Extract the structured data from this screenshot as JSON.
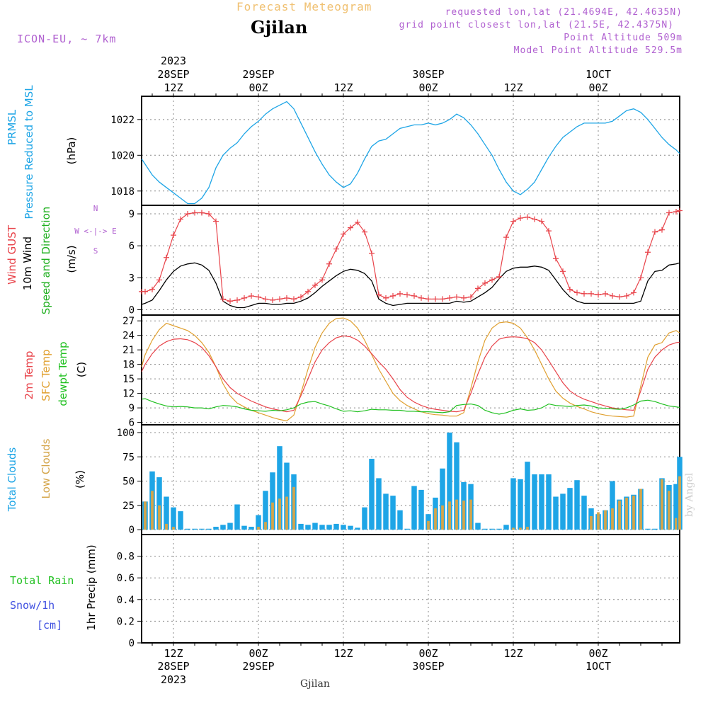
{
  "header": {
    "title": "Forecast Meteogram",
    "location": "Gjilan",
    "model": "ICON-EU, ~ 7km",
    "requested": "requested lon,lat (21.4694E, 42.4635N)",
    "gridpoint": "grid point closest lon,lat (21.5E, 42.4375N)",
    "point_altitude": "Point Altitude 509m",
    "model_altitude": "Model Point Altitude 529.5m",
    "footer_location": "Gjilan",
    "watermark": "by Angel"
  },
  "time_axis": {
    "top_year": "2023",
    "ticks": [
      {
        "t": 12,
        "time": "12Z",
        "date": "28SEP"
      },
      {
        "t": 24,
        "time": "00Z",
        "date": "29SEP"
      },
      {
        "t": 36,
        "time": "12Z",
        "date": ""
      },
      {
        "t": 48,
        "time": "00Z",
        "date": "30SEP"
      },
      {
        "t": 60,
        "time": "12Z",
        "date": ""
      },
      {
        "t": 72,
        "time": "00Z",
        "date": "1OCT"
      }
    ],
    "bottom_year": "2023",
    "t_start": 7.5,
    "t_end": 83.5
  },
  "panel_labels": {
    "pressure": [
      "PRMSL",
      "Pressure Reduced to MSL",
      "(hPa)"
    ],
    "wind": [
      "Wind GUST",
      "10m Wind",
      "Speed and Direction",
      "(m/s)"
    ],
    "compass": [
      "N",
      "W <-|-> E",
      "S"
    ],
    "temp": [
      "2m Temp",
      "SFC Temp",
      "dewpt Temp",
      "(C)"
    ],
    "clouds": [
      "Total Clouds",
      "Low Clouds",
      "(%)"
    ],
    "precip": [
      "Total  Rain",
      "Snow/1h",
      "[cm]",
      "1hr Precip (mm)"
    ]
  },
  "colors": {
    "pressure": "#1ea5e6",
    "gust": "#e8434a",
    "wind": "#000000",
    "wind_label": "#20b020",
    "sfc_temp": "#e0a030",
    "dewpoint": "#20c020",
    "total_clouds": "#1ea5e6",
    "low_clouds": "#d4a54a",
    "purple": "#b060d0",
    "header_orange": "#f0c070",
    "snow": "#4050e0"
  },
  "chart_data": [
    {
      "type": "line",
      "name": "pressure",
      "ylim": [
        1017.2,
        1023.3
      ],
      "yticks": [
        1018,
        1020,
        1022
      ],
      "x": [
        7.5,
        8,
        9,
        10,
        11,
        12,
        13,
        14,
        15,
        16,
        17,
        18,
        19,
        20,
        21,
        22,
        23,
        24,
        25,
        26,
        27,
        28,
        29,
        30,
        31,
        32,
        33,
        34,
        35,
        36,
        37,
        38,
        39,
        40,
        41,
        42,
        43,
        44,
        45,
        46,
        47,
        48,
        49,
        50,
        51,
        52,
        53,
        54,
        55,
        56,
        57,
        58,
        59,
        60,
        61,
        62,
        63,
        64,
        65,
        66,
        67,
        68,
        69,
        70,
        71,
        72,
        73,
        74,
        75,
        76,
        77,
        78,
        79,
        80,
        81,
        82,
        83,
        83.5
      ],
      "series": [
        {
          "name": "PRMSL",
          "values": [
            1019.8,
            1019.5,
            1018.9,
            1018.5,
            1018.2,
            1017.9,
            1017.6,
            1017.3,
            1017.3,
            1017.6,
            1018.2,
            1019.3,
            1020.0,
            1020.4,
            1020.7,
            1021.2,
            1021.6,
            1021.9,
            1022.3,
            1022.6,
            1022.8,
            1023.0,
            1022.6,
            1021.8,
            1021.0,
            1020.2,
            1019.5,
            1018.9,
            1018.5,
            1018.2,
            1018.4,
            1019.0,
            1019.8,
            1020.5,
            1020.8,
            1020.9,
            1021.2,
            1021.5,
            1021.6,
            1021.7,
            1021.7,
            1021.8,
            1021.7,
            1021.8,
            1022.0,
            1022.3,
            1022.1,
            1021.7,
            1021.2,
            1020.6,
            1020.0,
            1019.2,
            1018.5,
            1018.0,
            1017.8,
            1018.1,
            1018.5,
            1019.2,
            1019.9,
            1020.5,
            1021.0,
            1021.3,
            1021.6,
            1021.8,
            1021.8,
            1021.8,
            1021.8,
            1021.9,
            1022.2,
            1022.5,
            1022.6,
            1022.4,
            1022.0,
            1021.5,
            1021.0,
            1020.6,
            1020.3,
            1020.1
          ]
        }
      ]
    },
    {
      "type": "line",
      "name": "wind",
      "ylim": [
        -0.5,
        9.8
      ],
      "yticks": [
        0,
        3,
        6,
        9
      ],
      "x": [
        7.5,
        8,
        9,
        10,
        11,
        12,
        13,
        14,
        15,
        16,
        17,
        18,
        19,
        20,
        21,
        22,
        23,
        24,
        25,
        26,
        27,
        28,
        29,
        30,
        31,
        32,
        33,
        34,
        35,
        36,
        37,
        38,
        39,
        40,
        41,
        42,
        43,
        44,
        45,
        46,
        47,
        48,
        49,
        50,
        51,
        52,
        53,
        54,
        55,
        56,
        57,
        58,
        59,
        60,
        61,
        62,
        63,
        64,
        65,
        66,
        67,
        68,
        69,
        70,
        71,
        72,
        73,
        74,
        75,
        76,
        77,
        78,
        79,
        80,
        81,
        82,
        83,
        83.5
      ],
      "series": [
        {
          "name": "Wind GUST",
          "values": [
            1.7,
            1.7,
            1.9,
            2.8,
            4.9,
            7.0,
            8.5,
            9.0,
            9.1,
            9.1,
            9.0,
            8.3,
            1.0,
            0.8,
            0.9,
            1.1,
            1.3,
            1.2,
            1.0,
            0.9,
            1.0,
            1.1,
            1.0,
            1.2,
            1.7,
            2.3,
            2.8,
            4.3,
            5.7,
            7.1,
            7.7,
            8.2,
            7.3,
            5.3,
            1.4,
            1.1,
            1.3,
            1.5,
            1.4,
            1.3,
            1.1,
            1.0,
            1.0,
            1.0,
            1.1,
            1.2,
            1.1,
            1.2,
            2.0,
            2.5,
            2.8,
            3.1,
            6.8,
            8.3,
            8.6,
            8.7,
            8.5,
            8.3,
            7.4,
            4.8,
            3.6,
            1.9,
            1.6,
            1.5,
            1.5,
            1.4,
            1.5,
            1.3,
            1.2,
            1.3,
            1.6,
            3.0,
            5.4,
            7.3,
            7.5,
            9.1,
            9.2,
            9.3
          ]
        },
        {
          "name": "10m Wind",
          "values": [
            0.5,
            0.6,
            0.9,
            1.8,
            2.8,
            3.6,
            4.1,
            4.3,
            4.4,
            4.2,
            3.7,
            2.5,
            0.8,
            0.4,
            0.2,
            0.2,
            0.4,
            0.6,
            0.6,
            0.5,
            0.5,
            0.6,
            0.6,
            0.8,
            1.1,
            1.6,
            2.2,
            2.7,
            3.2,
            3.6,
            3.8,
            3.7,
            3.4,
            2.7,
            1.0,
            0.6,
            0.4,
            0.5,
            0.6,
            0.6,
            0.6,
            0.6,
            0.6,
            0.6,
            0.6,
            0.8,
            0.7,
            0.8,
            1.2,
            1.6,
            2.1,
            2.9,
            3.6,
            3.9,
            4.0,
            4.0,
            4.1,
            4.0,
            3.7,
            2.8,
            1.9,
            1.2,
            0.8,
            0.6,
            0.6,
            0.6,
            0.6,
            0.6,
            0.6,
            0.6,
            0.6,
            0.8,
            2.7,
            3.6,
            3.7,
            4.2,
            4.3,
            4.4
          ]
        }
      ]
    },
    {
      "type": "line",
      "name": "temperature",
      "ylim": [
        5.5,
        28.2
      ],
      "yticks": [
        6,
        9,
        12,
        15,
        18,
        21,
        24,
        27
      ],
      "x": [
        7.5,
        8,
        9,
        10,
        11,
        12,
        13,
        14,
        15,
        16,
        17,
        18,
        19,
        20,
        21,
        22,
        23,
        24,
        25,
        26,
        27,
        28,
        29,
        30,
        31,
        32,
        33,
        34,
        35,
        36,
        37,
        38,
        39,
        40,
        41,
        42,
        43,
        44,
        45,
        46,
        47,
        48,
        49,
        50,
        51,
        52,
        53,
        54,
        55,
        56,
        57,
        58,
        59,
        60,
        61,
        62,
        63,
        64,
        65,
        66,
        67,
        68,
        69,
        70,
        71,
        72,
        73,
        74,
        75,
        76,
        77,
        78,
        79,
        80,
        81,
        82,
        83,
        83.5
      ],
      "series": [
        {
          "name": "2m Temp",
          "values": [
            16.5,
            18.0,
            20.2,
            21.8,
            22.7,
            23.2,
            23.3,
            23.1,
            22.5,
            21.5,
            19.8,
            17.5,
            15.0,
            13.2,
            12.0,
            11.2,
            10.4,
            9.8,
            9.2,
            8.8,
            8.5,
            8.2,
            8.5,
            11.5,
            15.0,
            18.5,
            21.0,
            22.5,
            23.5,
            23.9,
            23.7,
            23.0,
            21.8,
            20.2,
            18.5,
            17.0,
            15.0,
            12.8,
            11.2,
            10.2,
            9.5,
            9.0,
            8.7,
            8.5,
            8.3,
            8.2,
            8.5,
            12.0,
            16.0,
            19.5,
            21.8,
            23.2,
            23.6,
            23.7,
            23.6,
            23.3,
            22.5,
            21.0,
            18.8,
            16.5,
            14.2,
            12.5,
            11.5,
            10.8,
            10.3,
            9.8,
            9.4,
            9.0,
            8.8,
            8.6,
            8.5,
            12.5,
            17.0,
            19.5,
            21.0,
            22.0,
            22.5,
            22.6
          ]
        },
        {
          "name": "SFC Temp",
          "values": [
            17.5,
            20.0,
            23.0,
            25.2,
            26.5,
            26.0,
            25.5,
            25.0,
            24.0,
            22.5,
            20.5,
            17.5,
            14.0,
            11.5,
            10.0,
            9.2,
            8.5,
            8.0,
            7.5,
            7.0,
            6.6,
            6.3,
            7.5,
            12.0,
            17.0,
            21.5,
            24.5,
            26.5,
            27.5,
            27.6,
            27.0,
            25.5,
            23.0,
            20.0,
            17.0,
            14.5,
            12.0,
            10.5,
            9.5,
            8.8,
            8.2,
            7.8,
            7.6,
            7.5,
            7.3,
            7.3,
            8.0,
            13.0,
            18.5,
            23.0,
            25.5,
            26.6,
            26.8,
            26.5,
            25.5,
            23.5,
            21.0,
            18.0,
            15.0,
            12.5,
            11.0,
            10.0,
            9.3,
            8.8,
            8.2,
            7.8,
            7.5,
            7.3,
            7.2,
            7.1,
            7.3,
            13.5,
            19.5,
            22.0,
            22.5,
            24.5,
            25.0,
            24.5
          ]
        },
        {
          "name": "dewpt Temp",
          "values": [
            10.8,
            10.9,
            10.3,
            9.8,
            9.4,
            9.2,
            9.3,
            9.2,
            9.0,
            9.0,
            8.8,
            9.2,
            9.5,
            9.4,
            9.2,
            8.8,
            8.5,
            8.4,
            8.3,
            8.5,
            8.4,
            8.6,
            9.0,
            9.8,
            10.2,
            10.3,
            9.8,
            9.4,
            8.8,
            8.3,
            8.4,
            8.2,
            8.4,
            8.7,
            8.6,
            8.6,
            8.5,
            8.5,
            8.3,
            8.3,
            8.2,
            8.2,
            8.1,
            8.0,
            8.2,
            9.5,
            9.7,
            9.8,
            9.5,
            8.5,
            8.0,
            7.7,
            8.0,
            8.5,
            8.8,
            8.5,
            8.6,
            9.0,
            9.8,
            9.5,
            9.4,
            9.3,
            9.5,
            9.6,
            9.4,
            9.0,
            8.9,
            8.8,
            8.7,
            9.0,
            9.6,
            10.4,
            10.6,
            10.3,
            9.8,
            9.4,
            9.2,
            9.1
          ]
        }
      ]
    },
    {
      "type": "bar",
      "name": "clouds",
      "ylim": [
        -5,
        108
      ],
      "yticks": [
        0,
        25,
        50,
        75,
        100
      ],
      "x": [
        8,
        9,
        10,
        11,
        12,
        13,
        14,
        15,
        16,
        17,
        18,
        19,
        20,
        21,
        22,
        23,
        24,
        25,
        26,
        27,
        28,
        29,
        30,
        31,
        32,
        33,
        34,
        35,
        36,
        37,
        38,
        39,
        40,
        41,
        42,
        43,
        44,
        45,
        46,
        47,
        48,
        49,
        50,
        51,
        52,
        53,
        54,
        55,
        56,
        57,
        58,
        59,
        60,
        61,
        62,
        63,
        64,
        65,
        66,
        67,
        68,
        69,
        70,
        71,
        72,
        73,
        74,
        75,
        76,
        77,
        78,
        79,
        80,
        81,
        82,
        83,
        83.5
      ],
      "series": [
        {
          "name": "Total Clouds",
          "values": [
            29,
            60,
            54,
            34,
            23,
            19,
            1,
            1,
            1,
            1,
            3,
            5,
            7,
            26,
            4,
            3,
            15,
            40,
            59,
            86,
            69,
            57,
            6,
            5,
            7,
            5,
            5,
            6,
            5,
            4,
            2,
            23,
            73,
            53,
            37,
            35,
            20,
            1,
            45,
            41,
            16,
            33,
            63,
            100,
            90,
            49,
            47,
            7,
            1,
            1,
            1,
            5,
            53,
            52,
            70,
            57,
            57,
            57,
            34,
            37,
            43,
            51,
            35,
            22,
            16,
            20,
            50,
            31,
            34,
            36,
            42,
            1,
            1,
            53,
            46,
            47,
            75
          ]
        },
        {
          "name": "Low Clouds",
          "values": [
            29,
            40,
            25,
            6,
            3,
            0,
            0,
            0,
            0,
            0,
            0,
            0,
            0,
            0,
            0,
            0,
            3,
            8,
            28,
            32,
            34,
            44,
            0,
            0,
            0,
            0,
            0,
            0,
            0,
            0,
            0,
            0,
            0,
            0,
            0,
            0,
            0,
            0,
            0,
            0,
            9,
            22,
            25,
            29,
            31,
            30,
            31,
            0,
            0,
            0,
            0,
            0,
            2,
            2,
            3,
            0,
            0,
            0,
            0,
            0,
            0,
            0,
            0,
            14,
            18,
            20,
            22,
            30,
            33,
            35,
            42,
            0,
            0,
            52,
            40,
            12,
            55
          ]
        }
      ]
    },
    {
      "type": "bar",
      "name": "precipitation",
      "ylim": [
        0,
        1.0
      ],
      "yticks": [
        0,
        0.2,
        0.4,
        0.6,
        0.8
      ],
      "x": [],
      "series": [
        {
          "name": "Total Rain",
          "values": []
        },
        {
          "name": "Snow/1h",
          "values": []
        }
      ]
    }
  ]
}
